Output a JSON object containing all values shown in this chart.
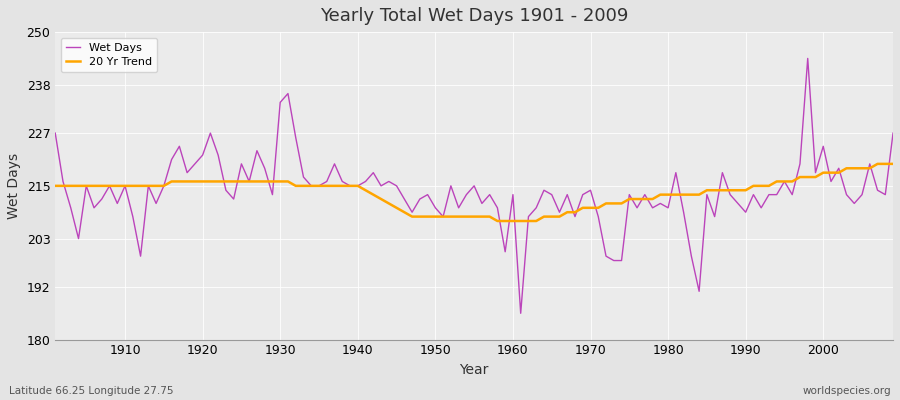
{
  "title": "Yearly Total Wet Days 1901 - 2009",
  "xlabel": "Year",
  "ylabel": "Wet Days",
  "footnote_left": "Latitude 66.25 Longitude 27.75",
  "footnote_right": "worldspecies.org",
  "line_color": "#BB44BB",
  "trend_color": "#FFA500",
  "bg_color": "#E4E4E4",
  "plot_bg_color": "#EBEBEB",
  "ylim": [
    180,
    250
  ],
  "xlim": [
    1901,
    2009
  ],
  "yticks": [
    180,
    192,
    203,
    215,
    227,
    238,
    250
  ],
  "xticks": [
    1910,
    1920,
    1930,
    1940,
    1950,
    1960,
    1970,
    1980,
    1990,
    2000
  ],
  "years": [
    1901,
    1902,
    1903,
    1904,
    1905,
    1906,
    1907,
    1908,
    1909,
    1910,
    1911,
    1912,
    1913,
    1914,
    1915,
    1916,
    1917,
    1918,
    1919,
    1920,
    1921,
    1922,
    1923,
    1924,
    1925,
    1926,
    1927,
    1928,
    1929,
    1930,
    1931,
    1932,
    1933,
    1934,
    1935,
    1936,
    1937,
    1938,
    1939,
    1940,
    1941,
    1942,
    1943,
    1944,
    1945,
    1946,
    1947,
    1948,
    1949,
    1950,
    1951,
    1952,
    1953,
    1954,
    1955,
    1956,
    1957,
    1958,
    1959,
    1960,
    1961,
    1962,
    1963,
    1964,
    1965,
    1966,
    1967,
    1968,
    1969,
    1970,
    1971,
    1972,
    1973,
    1974,
    1975,
    1976,
    1977,
    1978,
    1979,
    1980,
    1981,
    1982,
    1983,
    1984,
    1985,
    1986,
    1987,
    1988,
    1989,
    1990,
    1991,
    1992,
    1993,
    1994,
    1995,
    1996,
    1997,
    1998,
    1999,
    2000,
    2001,
    2002,
    2003,
    2004,
    2005,
    2006,
    2007,
    2008,
    2009
  ],
  "wet_days": [
    227,
    216,
    210,
    203,
    215,
    210,
    212,
    215,
    211,
    215,
    208,
    199,
    215,
    211,
    215,
    221,
    224,
    218,
    220,
    222,
    227,
    222,
    214,
    212,
    220,
    216,
    223,
    219,
    213,
    234,
    236,
    226,
    217,
    215,
    215,
    216,
    220,
    216,
    215,
    215,
    216,
    218,
    215,
    216,
    215,
    212,
    209,
    212,
    213,
    210,
    208,
    215,
    210,
    213,
    215,
    211,
    213,
    210,
    200,
    213,
    186,
    208,
    210,
    214,
    213,
    209,
    213,
    208,
    213,
    214,
    208,
    199,
    198,
    198,
    213,
    210,
    213,
    210,
    211,
    210,
    218,
    209,
    199,
    191,
    213,
    208,
    218,
    213,
    211,
    209,
    213,
    210,
    213,
    213,
    216,
    213,
    220,
    244,
    218,
    224,
    216,
    219,
    213,
    211,
    213,
    220,
    214,
    213,
    227
  ],
  "trend": [
    215,
    215,
    215,
    215,
    215,
    215,
    215,
    215,
    215,
    215,
    215,
    215,
    215,
    215,
    215,
    216,
    216,
    216,
    216,
    216,
    216,
    216,
    216,
    216,
    216,
    216,
    216,
    216,
    216,
    216,
    216,
    215,
    215,
    215,
    215,
    215,
    215,
    215,
    215,
    215,
    214,
    213,
    212,
    211,
    210,
    209,
    208,
    208,
    208,
    208,
    208,
    208,
    208,
    208,
    208,
    208,
    208,
    207,
    207,
    207,
    207,
    207,
    207,
    208,
    208,
    208,
    209,
    209,
    210,
    210,
    210,
    211,
    211,
    211,
    212,
    212,
    212,
    212,
    213,
    213,
    213,
    213,
    213,
    213,
    214,
    214,
    214,
    214,
    214,
    214,
    215,
    215,
    215,
    216,
    216,
    216,
    217,
    217,
    217,
    218,
    218,
    218,
    219,
    219,
    219,
    219,
    220,
    220,
    220
  ]
}
